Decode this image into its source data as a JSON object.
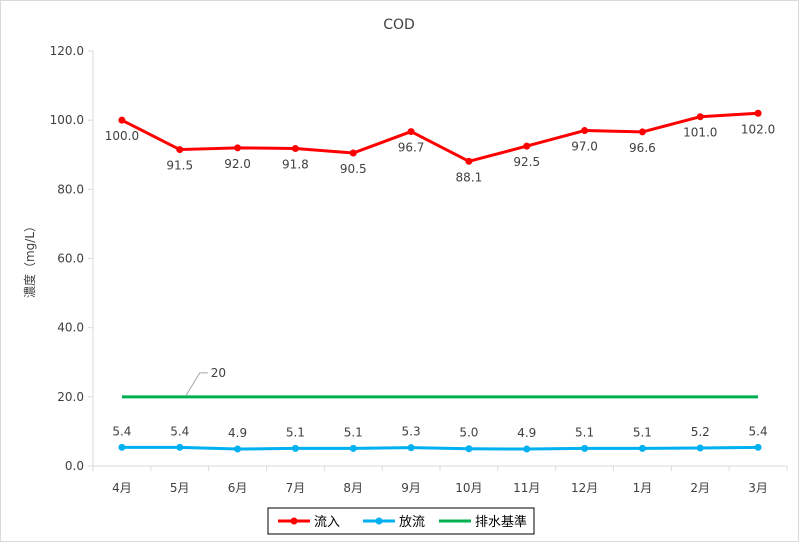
{
  "chart_data": {
    "type": "line",
    "title": "COD",
    "xlabel": "",
    "ylabel": "濃度（mg/L）",
    "categories": [
      "4月",
      "5月",
      "6月",
      "7月",
      "8月",
      "9月",
      "10月",
      "11月",
      "12月",
      "1月",
      "2月",
      "3月"
    ],
    "ylim": [
      0,
      120
    ],
    "yticks": [
      "0.0",
      "20.0",
      "40.0",
      "60.0",
      "80.0",
      "100.0",
      "120.0"
    ],
    "grid": false,
    "legend_position": "bottom",
    "series": [
      {
        "name": "流入",
        "color": "#ff0000",
        "values": [
          100.0,
          91.5,
          92.0,
          91.8,
          90.5,
          96.7,
          88.1,
          92.5,
          97.0,
          96.6,
          101.0,
          102.0
        ],
        "labels": [
          "100.0",
          "91.5",
          "92.0",
          "91.8",
          "90.5",
          "96.7",
          "88.1",
          "92.5",
          "97.0",
          "96.6",
          "101.0",
          "102.0"
        ],
        "markers": true
      },
      {
        "name": "放流",
        "color": "#00b0f0",
        "values": [
          5.4,
          5.4,
          4.9,
          5.1,
          5.1,
          5.3,
          5.0,
          4.9,
          5.1,
          5.1,
          5.2,
          5.4
        ],
        "labels": [
          "5.4",
          "5.4",
          "4.9",
          "5.1",
          "5.1",
          "5.3",
          "5.0",
          "4.9",
          "5.1",
          "5.1",
          "5.2",
          "5.4"
        ],
        "markers": true
      },
      {
        "name": "排水基準",
        "color": "#00b050",
        "values": [
          20,
          20,
          20,
          20,
          20,
          20,
          20,
          20,
          20,
          20,
          20,
          20
        ],
        "markers": false
      }
    ],
    "annotations": [
      {
        "text": "20",
        "series": "排水基準"
      }
    ]
  }
}
